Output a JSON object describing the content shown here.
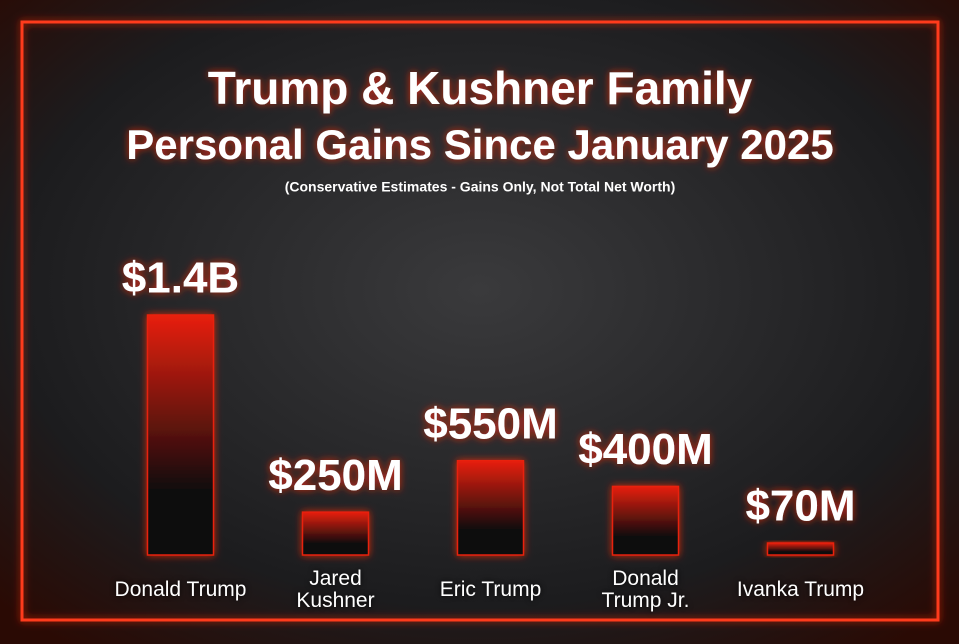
{
  "chart_data": {
    "type": "bar",
    "title": "Trump & Kushner Family",
    "subtitle": "Personal Gains Since January 2025",
    "note": "(Conservative Estimates - Gains Only, Not Total Net Worth)",
    "categories": [
      "Donald Trump",
      "Jared Kushner",
      "Eric Trump",
      "Donald Trump Jr.",
      "Ivanka Trump"
    ],
    "values": [
      1400000000,
      250000000,
      550000000,
      400000000,
      70000000
    ],
    "value_labels": [
      "$1.4B",
      "$250M",
      "$550M",
      "$400M",
      "$70M"
    ],
    "color": "#e8200c"
  }
}
